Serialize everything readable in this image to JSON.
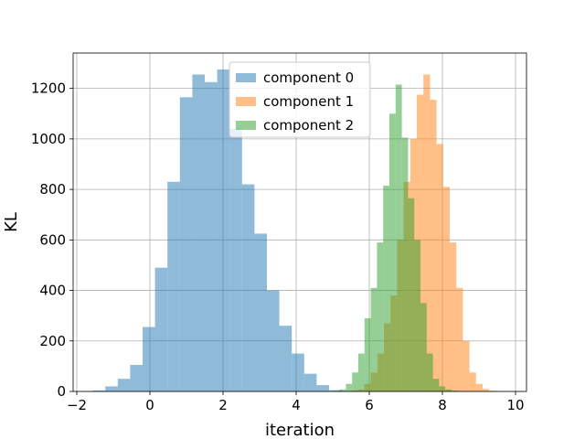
{
  "chart_data": {
    "type": "histogram",
    "xlabel": "iteration",
    "ylabel": "KL",
    "xlim": [
      -2.1,
      10.3
    ],
    "ylim": [
      0,
      1340
    ],
    "xticks": [
      -2,
      0,
      2,
      4,
      6,
      8,
      10
    ],
    "yticks": [
      0,
      200,
      400,
      600,
      800,
      1000,
      1200
    ],
    "xtick_labels": [
      "−2",
      "0",
      "2",
      "4",
      "6",
      "8",
      "10"
    ],
    "ytick_labels": [
      "0",
      "200",
      "400",
      "600",
      "800",
      "1000",
      "1200"
    ],
    "grid": true,
    "legend_position": "top-center",
    "series": [
      {
        "name": "component 0",
        "color": "#1f77b4",
        "bins": [
          [
            -1.56,
            -1.22,
            4
          ],
          [
            -1.22,
            -0.88,
            20
          ],
          [
            -0.88,
            -0.54,
            50
          ],
          [
            -0.54,
            -0.2,
            105
          ],
          [
            -0.2,
            0.14,
            255
          ],
          [
            0.14,
            0.48,
            490
          ],
          [
            0.48,
            0.82,
            830
          ],
          [
            0.82,
            1.16,
            1165
          ],
          [
            1.16,
            1.5,
            1255
          ],
          [
            1.5,
            1.84,
            1225
          ],
          [
            1.84,
            2.18,
            1275
          ],
          [
            2.18,
            2.52,
            1040
          ],
          [
            2.52,
            2.86,
            820
          ],
          [
            2.86,
            3.2,
            625
          ],
          [
            3.2,
            3.54,
            400
          ],
          [
            3.54,
            3.88,
            260
          ],
          [
            3.88,
            4.22,
            150
          ],
          [
            4.22,
            4.56,
            70
          ],
          [
            4.56,
            4.9,
            25
          ],
          [
            4.9,
            5.24,
            5
          ]
        ]
      },
      {
        "name": "component 1",
        "color": "#ff7f0e",
        "bins": [
          [
            5.5,
            5.68,
            3
          ],
          [
            5.68,
            5.86,
            8
          ],
          [
            5.86,
            6.04,
            30
          ],
          [
            6.04,
            6.22,
            75
          ],
          [
            6.22,
            6.4,
            150
          ],
          [
            6.4,
            6.58,
            270
          ],
          [
            6.58,
            6.76,
            380
          ],
          [
            6.76,
            6.94,
            600
          ],
          [
            6.94,
            7.12,
            830
          ],
          [
            7.12,
            7.3,
            1000
          ],
          [
            7.3,
            7.48,
            1175
          ],
          [
            7.48,
            7.66,
            1255
          ],
          [
            7.66,
            7.84,
            1155
          ],
          [
            7.84,
            8.02,
            980
          ],
          [
            8.02,
            8.2,
            810
          ],
          [
            8.2,
            8.38,
            590
          ],
          [
            8.38,
            8.56,
            410
          ],
          [
            8.56,
            8.74,
            200
          ],
          [
            8.74,
            8.92,
            75
          ],
          [
            8.92,
            9.1,
            30
          ],
          [
            9.1,
            9.28,
            10
          ],
          [
            9.28,
            9.46,
            3
          ],
          [
            9.46,
            9.64,
            1
          ],
          [
            9.64,
            9.82,
            1
          ]
        ]
      },
      {
        "name": "component 2",
        "color": "#2ca02c",
        "bins": [
          [
            5.02,
            5.19,
            3
          ],
          [
            5.19,
            5.36,
            8
          ],
          [
            5.36,
            5.53,
            30
          ],
          [
            5.53,
            5.7,
            75
          ],
          [
            5.7,
            5.87,
            150
          ],
          [
            5.87,
            6.04,
            290
          ],
          [
            6.04,
            6.21,
            410
          ],
          [
            6.21,
            6.38,
            590
          ],
          [
            6.38,
            6.55,
            815
          ],
          [
            6.55,
            6.72,
            1100
          ],
          [
            6.72,
            6.89,
            1215
          ],
          [
            6.89,
            7.06,
            1005
          ],
          [
            7.06,
            7.23,
            765
          ],
          [
            7.23,
            7.4,
            600
          ],
          [
            7.4,
            7.57,
            350
          ],
          [
            7.57,
            7.74,
            150
          ],
          [
            7.74,
            7.91,
            50
          ],
          [
            7.91,
            8.08,
            20
          ],
          [
            8.08,
            8.25,
            8
          ],
          [
            8.25,
            8.42,
            3
          ]
        ]
      }
    ]
  }
}
